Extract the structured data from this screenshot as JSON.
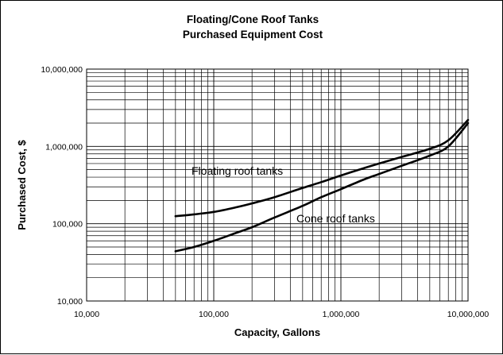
{
  "chart_data": {
    "type": "line",
    "title": "Floating/Cone Roof Tanks",
    "subtitle": "Purchased Equipment Cost",
    "xlabel": "Capacity, Gallons",
    "ylabel": "Purchased Cost, $",
    "x_scale": "log",
    "y_scale": "log",
    "xlim": [
      10000,
      10000000
    ],
    "ylim": [
      10000,
      10000000
    ],
    "x_tick_labels": [
      "10,000",
      "100,000",
      "1,000,000",
      "10,000,000"
    ],
    "y_tick_labels": [
      "10,000",
      "100,000",
      "1,000,000",
      "10,000,000"
    ],
    "grid": true,
    "legend": "none",
    "series": [
      {
        "name": "Floating roof tanks",
        "x": [
          50000,
          70000,
          100000,
          150000,
          200000,
          300000,
          500000,
          700000,
          1000000,
          1500000,
          2000000,
          3000000,
          5000000,
          7000000,
          10000000
        ],
        "y": [
          125000,
          132000,
          142000,
          163000,
          183000,
          220000,
          290000,
          345000,
          420000,
          520000,
          600000,
          730000,
          930000,
          1200000,
          2200000
        ]
      },
      {
        "name": "Cone roof tanks",
        "x": [
          50000,
          70000,
          100000,
          150000,
          200000,
          300000,
          500000,
          700000,
          1000000,
          1500000,
          2000000,
          3000000,
          5000000,
          7000000,
          10000000
        ],
        "y": [
          44000,
          50000,
          60000,
          76000,
          90000,
          120000,
          170000,
          220000,
          280000,
          370000,
          440000,
          560000,
          760000,
          1000000,
          2000000
        ]
      }
    ]
  }
}
